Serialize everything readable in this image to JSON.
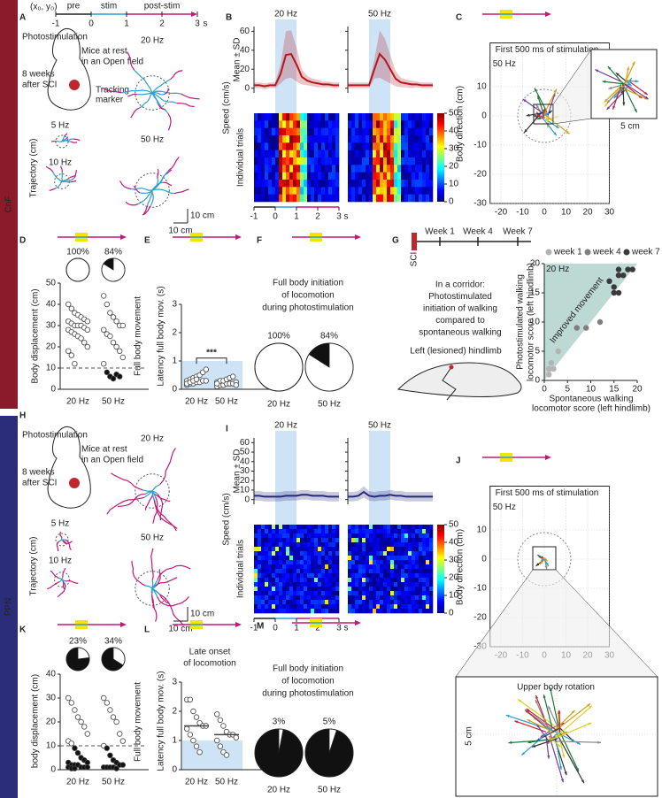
{
  "bands": [
    "CnF",
    "PPN"
  ],
  "A": {
    "letter": "A",
    "origin": "(x₀, y₀)",
    "phases": [
      "pre",
      "stim",
      "post-stim"
    ],
    "time_ticks": [
      -1,
      0,
      1,
      2,
      3
    ],
    "time_unit": "s",
    "photostimulation": "Photostimulation",
    "setting": [
      "Mice at rest",
      "in an Open field"
    ],
    "condition": [
      "8 weeks",
      "after SCI"
    ],
    "marker": [
      "Tracking",
      "marker"
    ],
    "freqs": [
      "5 Hz",
      "10 Hz",
      "20 Hz",
      "50 Hz"
    ],
    "ylabel": "Trajectory (cm)",
    "scale_bars": [
      "10 cm",
      "10 cm"
    ]
  },
  "B": {
    "letter": "B",
    "freqs": [
      "20 Hz",
      "50 Hz"
    ],
    "label_mean": "Mean ± SD",
    "ylabel": "Speed (cm/s)",
    "label_trials": "Individual trials",
    "ylim": [
      -5,
      65
    ],
    "yticks": [
      0,
      20,
      40,
      60
    ],
    "xlim": [
      -1,
      3
    ],
    "xticks": [
      -1,
      0,
      1,
      2,
      3
    ],
    "x_unit": "s",
    "colorbar_ticks": [
      0,
      10,
      20,
      30,
      40,
      50
    ],
    "color": "#b5161e",
    "x": [
      -1,
      -0.75,
      -0.5,
      -0.25,
      0,
      0.25,
      0.5,
      0.75,
      1,
      1.25,
      1.5,
      1.75,
      2,
      2.25,
      2.5,
      2.75,
      3
    ],
    "series": [
      {
        "values": [
          3,
          3,
          2,
          3,
          3,
          15,
          35,
          36,
          25,
          12,
          8,
          6,
          5,
          4,
          4,
          3,
          3
        ],
        "sd": [
          3,
          3,
          3,
          3,
          3,
          10,
          25,
          25,
          18,
          8,
          5,
          4,
          4,
          3,
          3,
          3,
          3
        ]
      },
      {
        "values": [
          3,
          3,
          3,
          3,
          3,
          20,
          36,
          30,
          20,
          10,
          6,
          5,
          4,
          4,
          3,
          3,
          3
        ],
        "sd": [
          3,
          3,
          3,
          3,
          3,
          10,
          25,
          22,
          15,
          8,
          5,
          4,
          4,
          3,
          3,
          3,
          3
        ]
      }
    ]
  },
  "C": {
    "letter": "C",
    "title": "First 500 ms of stimulation",
    "freq": "50 Hz",
    "ylabel": "Body direction (cm)",
    "xlim": [
      -25,
      30
    ],
    "xticks": [
      -20,
      -10,
      0,
      10,
      20,
      30
    ],
    "ylim": [
      -30,
      25
    ],
    "yticks": [
      -30,
      -20,
      -10,
      0,
      10
    ],
    "scale": "5 cm"
  },
  "D": {
    "letter": "D",
    "ylabel": "Body displacement (cm)",
    "side_label": "Full body movement",
    "ylim": [
      0,
      50
    ],
    "yticks": [
      0,
      10,
      20,
      30,
      40,
      50
    ],
    "threshold": 10,
    "categories": [
      "20 Hz",
      "50 Hz"
    ],
    "pies": [
      100,
      84
    ],
    "pie_labels": [
      "100%",
      "84%"
    ],
    "points": [
      [
        40,
        38,
        36,
        35,
        34,
        33,
        32,
        32,
        31,
        30,
        30,
        30,
        29,
        28,
        28,
        27,
        26,
        25,
        24,
        22,
        20,
        18,
        16,
        12
      ],
      [
        44,
        40,
        36,
        34,
        32,
        30,
        30,
        28,
        26,
        25,
        22,
        20,
        18,
        15,
        12,
        8,
        6,
        5,
        7,
        6
      ]
    ]
  },
  "E": {
    "letter": "E",
    "ylabel": "Latency full body mov. (s)",
    "ylim": [
      0,
      3
    ],
    "yticks": [
      0,
      1,
      2,
      3
    ],
    "categories": [
      "20 Hz",
      "50 Hz"
    ],
    "significance": "***",
    "points": [
      [
        0.15,
        0.2,
        0.2,
        0.25,
        0.25,
        0.3,
        0.3,
        0.3,
        0.35,
        0.4,
        0.45,
        0.5,
        0.6,
        0.7,
        0.2,
        0.25,
        0.3,
        0.35
      ],
      [
        0.1,
        0.15,
        0.15,
        0.2,
        0.2,
        0.2,
        0.25,
        0.25,
        0.3,
        0.3,
        0.35,
        0.4,
        0.45,
        0.15,
        0.2
      ]
    ]
  },
  "F": {
    "letter": "F",
    "text": [
      "Full body initiation",
      "of locomotion",
      "during photostimulation"
    ],
    "pies": [
      100,
      84
    ],
    "pie_labels": [
      "100%",
      "84%"
    ],
    "categories": [
      "20 Hz",
      "50 Hz"
    ]
  },
  "G": {
    "letter": "G",
    "timeline": [
      "SCI",
      "Week 1",
      "Week 4",
      "Week 7"
    ],
    "text": [
      "In a corridor:",
      "Photostimulated",
      "initiation of walking",
      "compared to",
      "spontaneous walking"
    ],
    "hindlimb": "Left (lesioned) hindlimb",
    "freq": "20 Hz",
    "region": "Improved movement",
    "ylabel": [
      "Photostimulated walking",
      "locomotor score (left hindlimb)"
    ],
    "xlabel": [
      "Spontaneous walking",
      "locomotor score (left hindlimb)"
    ],
    "xlim": [
      0,
      20
    ],
    "ylim": [
      0,
      20
    ],
    "xticks": [
      0,
      5,
      10,
      15,
      20
    ],
    "yticks": [
      0,
      5,
      10,
      15,
      20
    ],
    "series": [
      {
        "name": "week 1",
        "color": "#b3b3b3",
        "x": [
          1,
          1.5,
          2,
          3,
          1
        ],
        "y": [
          2,
          3,
          2,
          5,
          1
        ]
      },
      {
        "name": "week 4",
        "color": "#7f7f7f",
        "x": [
          7,
          9,
          12
        ],
        "y": [
          9,
          9,
          10
        ]
      },
      {
        "name": "week 7",
        "color": "#3a3a3a",
        "x": [
          14,
          15,
          16,
          16,
          17,
          18,
          19,
          15,
          16
        ],
        "y": [
          17,
          16,
          18,
          19,
          18,
          19,
          19,
          15,
          15
        ]
      }
    ]
  },
  "H": {
    "letter": "H",
    "photostimulation": "Photostimulation",
    "setting": [
      "Mice at rest",
      "in an Open field"
    ],
    "condition": [
      "8 weeks",
      "after SCI"
    ],
    "freqs": [
      "5 Hz",
      "10 Hz",
      "20 Hz",
      "50 Hz"
    ],
    "ylabel": "Trajectory (cm)",
    "scale_bars": [
      "10 cm",
      "10 cm"
    ]
  },
  "I": {
    "letter": "I",
    "freqs": [
      "20 Hz",
      "50 Hz"
    ],
    "label_mean": "Mean ± SD",
    "ylabel": "Speed (cm/s)",
    "label_trials": "Individual trials",
    "ylim": [
      -5,
      65
    ],
    "yticks": [
      0,
      10,
      20,
      30,
      40,
      50,
      60
    ],
    "xlim": [
      -1,
      3
    ],
    "xticks": [
      -1,
      0,
      1,
      2,
      3
    ],
    "x_unit": "s",
    "colorbar_ticks": [
      0,
      10,
      20,
      30,
      40,
      50
    ],
    "color": "#262a78",
    "x": [
      -1,
      -0.75,
      -0.5,
      -0.25,
      0,
      0.25,
      0.5,
      0.75,
      1,
      1.25,
      1.5,
      1.75,
      2,
      2.25,
      2.5,
      2.75,
      3
    ],
    "series": [
      {
        "values": [
          4,
          4,
          3,
          3,
          3,
          3,
          4,
          4,
          4,
          5,
          5,
          4,
          4,
          4,
          3,
          3,
          3
        ],
        "sd": [
          5,
          5,
          5,
          5,
          5,
          5,
          5,
          5,
          5,
          5,
          5,
          5,
          5,
          5,
          5,
          5,
          5
        ]
      },
      {
        "values": [
          3,
          3,
          4,
          8,
          4,
          3,
          4,
          4,
          5,
          4,
          4,
          3,
          3,
          3,
          3,
          3,
          3
        ],
        "sd": [
          5,
          5,
          5,
          6,
          5,
          5,
          5,
          5,
          5,
          5,
          5,
          5,
          5,
          5,
          5,
          5,
          5
        ]
      }
    ]
  },
  "J": {
    "letter": "J",
    "title": "First 500 ms of stimulation",
    "freq": "50 Hz",
    "ylabel": "Body direction (cm)",
    "xlim": [
      -25,
      30
    ],
    "xticks": [
      -20,
      -10,
      0,
      10,
      20,
      30
    ],
    "ylim": [
      -30,
      25
    ],
    "yticks": [
      -30,
      -20,
      -10,
      0,
      10
    ],
    "zoom_title": "Upper body rotation",
    "scale": "5 cm"
  },
  "K": {
    "letter": "K",
    "ylabel": "body displacement (cm)",
    "side_label": "Full body movement",
    "ylim": [
      0,
      40
    ],
    "yticks": [
      0,
      10,
      20,
      30,
      40
    ],
    "threshold": 10,
    "categories": [
      "20 Hz",
      "50 Hz"
    ],
    "pies": [
      23,
      34
    ],
    "pie_labels": [
      "23%",
      "34%"
    ],
    "points": [
      [
        30,
        28,
        25,
        22,
        20,
        18,
        15,
        12,
        11,
        9,
        7,
        5,
        4,
        3,
        3,
        2,
        2,
        2,
        1,
        1,
        1,
        1,
        0.5,
        0.5
      ],
      [
        30,
        28,
        25,
        22,
        20,
        15,
        12,
        10,
        9,
        6,
        4,
        3,
        2,
        2,
        1,
        1,
        1,
        1,
        0.5
      ]
    ]
  },
  "L": {
    "letter": "L",
    "text": [
      "Late onset",
      "of locomotion"
    ],
    "ylabel": "Latency full body mov. (s)",
    "ylim": [
      0,
      3
    ],
    "yticks": [
      0,
      1,
      2,
      3
    ],
    "categories": [
      "20 Hz",
      "50 Hz"
    ],
    "medians": [
      1.5,
      1.2
    ],
    "points": [
      [
        2.4,
        2.4,
        2,
        1.8,
        1.6,
        1.5,
        1.5,
        1.4,
        1.2,
        1,
        0.8,
        0.6
      ],
      [
        1.9,
        1.7,
        1.5,
        1.3,
        1.2,
        1.2,
        1.1,
        1,
        0.8,
        0.6,
        0.5
      ]
    ]
  },
  "M": {
    "letter": "M",
    "text": [
      "Full body initiation",
      "of locomotion",
      "during photostimulation"
    ],
    "pies": [
      3,
      5
    ],
    "pie_labels": [
      "3%",
      "5%"
    ],
    "categories": [
      "20 Hz",
      "50 Hz"
    ]
  }
}
